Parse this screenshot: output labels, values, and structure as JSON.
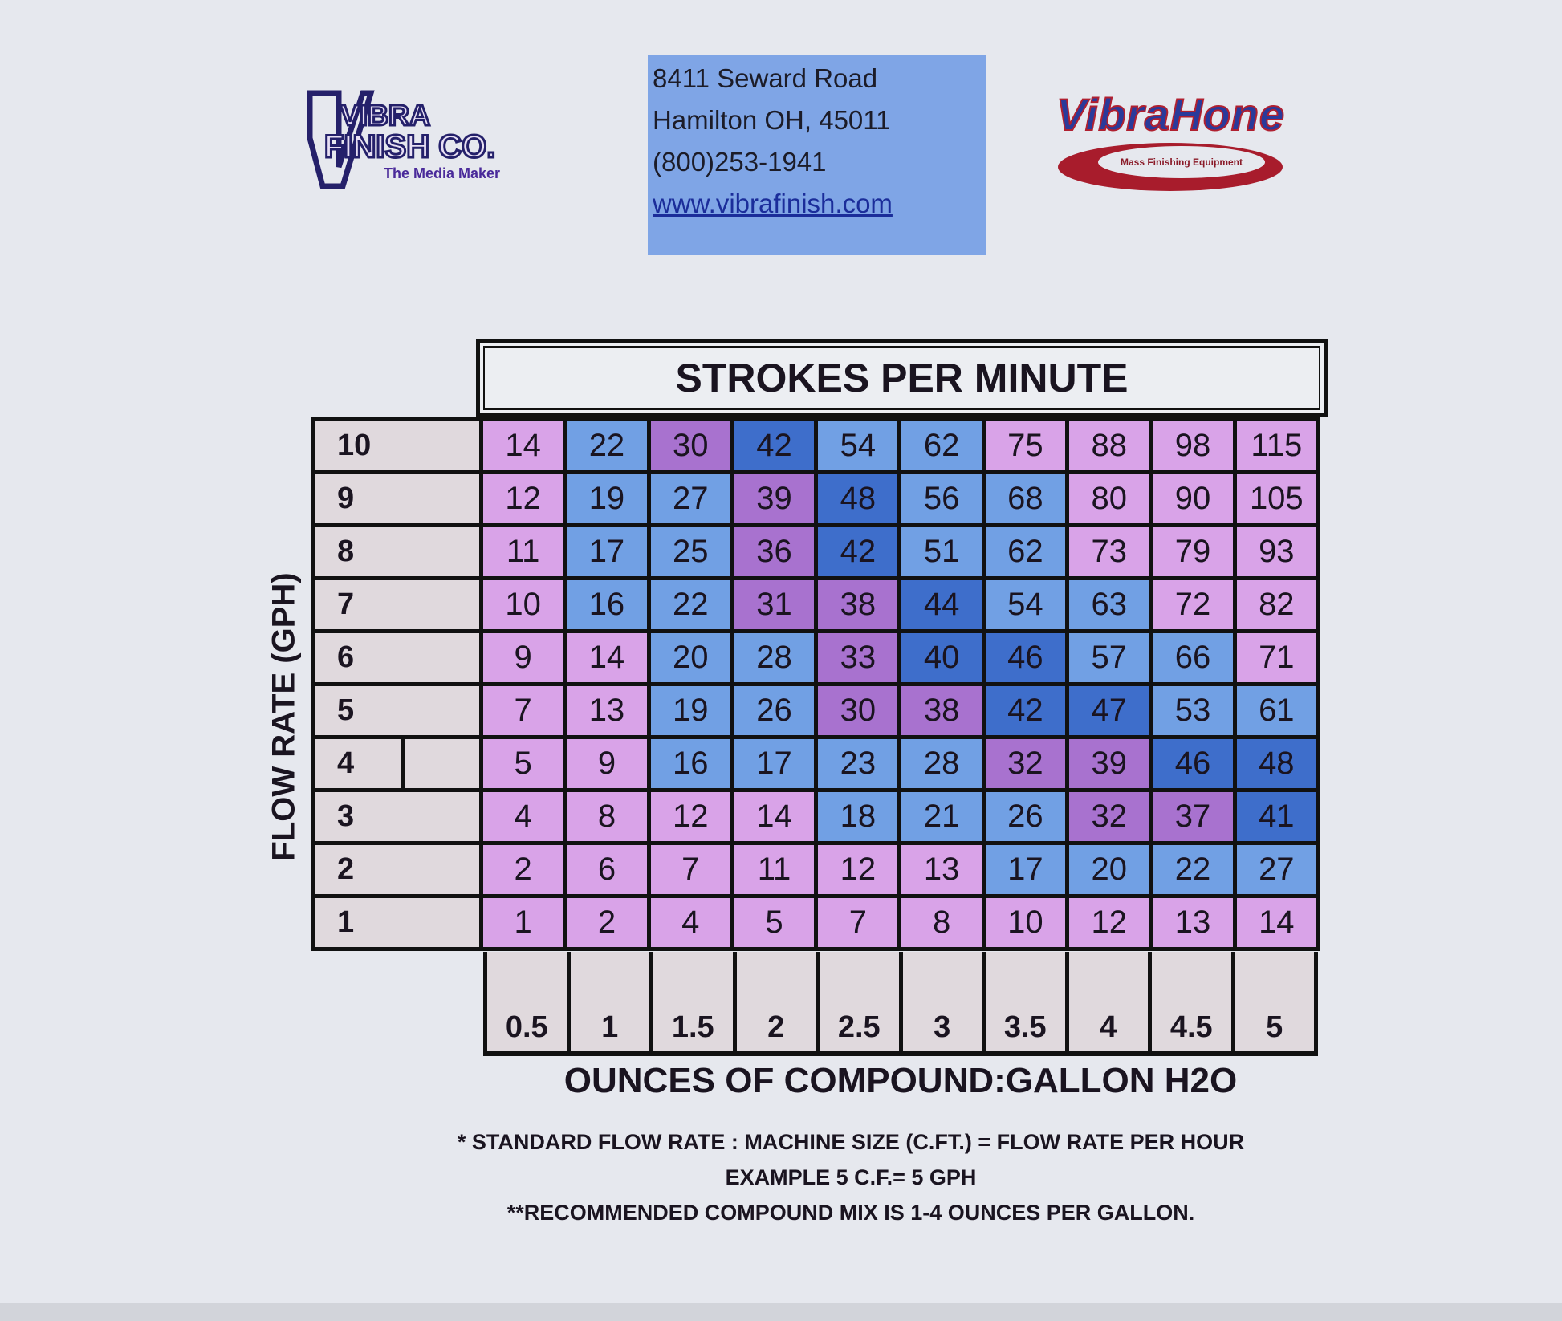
{
  "header": {
    "left_logo": {
      "lines": [
        "VIBRA",
        "FINISH CO."
      ],
      "tagline": "The Media Maker"
    },
    "address": {
      "street": "8411 Seward Road",
      "city": "Hamilton OH, 45011",
      "phone": "(800)253-1941",
      "website": "www.vibrafinish.com"
    },
    "right_logo": {
      "name": "VibraHone",
      "tagline": "Mass Finishing Equipment"
    }
  },
  "chart_data": {
    "type": "table",
    "title": "STROKES PER MINUTE",
    "xlabel": "OUNCES OF COMPOUND:GALLON H2O",
    "ylabel": "FLOW RATE (GPH)",
    "columns": [
      "0.5",
      "1",
      "1.5",
      "2",
      "2.5",
      "3",
      "3.5",
      "4",
      "4.5",
      "5"
    ],
    "colors": {
      "P": "#d9a3e8",
      "B": "#71a0e4",
      "M": "#a872cf",
      "D": "#3e6ecb"
    },
    "rows": [
      {
        "label": "10",
        "values": [
          14,
          22,
          30,
          42,
          54,
          62,
          75,
          88,
          98,
          115
        ],
        "color_codes": [
          "P",
          "B",
          "M",
          "D",
          "B",
          "B",
          "P",
          "P",
          "P",
          "P"
        ]
      },
      {
        "label": "9",
        "values": [
          12,
          19,
          27,
          39,
          48,
          56,
          68,
          80,
          90,
          105
        ],
        "color_codes": [
          "P",
          "B",
          "B",
          "M",
          "D",
          "B",
          "B",
          "P",
          "P",
          "P"
        ]
      },
      {
        "label": "8",
        "values": [
          11,
          17,
          25,
          36,
          42,
          51,
          62,
          73,
          79,
          93
        ],
        "color_codes": [
          "P",
          "B",
          "B",
          "M",
          "D",
          "B",
          "B",
          "P",
          "P",
          "P"
        ]
      },
      {
        "label": "7",
        "values": [
          10,
          16,
          22,
          31,
          38,
          44,
          54,
          63,
          72,
          82
        ],
        "color_codes": [
          "P",
          "B",
          "B",
          "M",
          "M",
          "D",
          "B",
          "B",
          "P",
          "P"
        ]
      },
      {
        "label": "6",
        "values": [
          9,
          14,
          20,
          28,
          33,
          40,
          46,
          57,
          66,
          71
        ],
        "color_codes": [
          "P",
          "P",
          "B",
          "B",
          "M",
          "D",
          "D",
          "B",
          "B",
          "P"
        ]
      },
      {
        "label": "5",
        "values": [
          7,
          13,
          19,
          26,
          30,
          38,
          42,
          47,
          53,
          61
        ],
        "color_codes": [
          "P",
          "P",
          "B",
          "B",
          "M",
          "M",
          "D",
          "D",
          "B",
          "B"
        ]
      },
      {
        "label": "4",
        "values": [
          5,
          9,
          16,
          17,
          23,
          28,
          32,
          39,
          46,
          48
        ],
        "color_codes": [
          "P",
          "P",
          "B",
          "B",
          "B",
          "B",
          "M",
          "M",
          "D",
          "D"
        ]
      },
      {
        "label": "3",
        "values": [
          4,
          8,
          12,
          14,
          18,
          21,
          26,
          32,
          37,
          41
        ],
        "color_codes": [
          "P",
          "P",
          "P",
          "P",
          "B",
          "B",
          "B",
          "M",
          "M",
          "D"
        ]
      },
      {
        "label": "2",
        "values": [
          2,
          6,
          7,
          11,
          12,
          13,
          17,
          20,
          22,
          27
        ],
        "color_codes": [
          "P",
          "P",
          "P",
          "P",
          "P",
          "P",
          "B",
          "B",
          "B",
          "B"
        ]
      },
      {
        "label": "1",
        "values": [
          1,
          2,
          4,
          5,
          7,
          8,
          10,
          12,
          13,
          14
        ],
        "color_codes": [
          "P",
          "P",
          "P",
          "P",
          "P",
          "P",
          "P",
          "P",
          "P",
          "P"
        ]
      }
    ]
  },
  "notes": [
    "* STANDARD FLOW RATE : MACHINE SIZE (C.FT.) = FLOW RATE PER HOUR",
    "EXAMPLE 5 C.F.= 5 GPH",
    "**RECOMMENDED COMPOUND MIX IS 1-4 OUNCES PER GALLON."
  ]
}
